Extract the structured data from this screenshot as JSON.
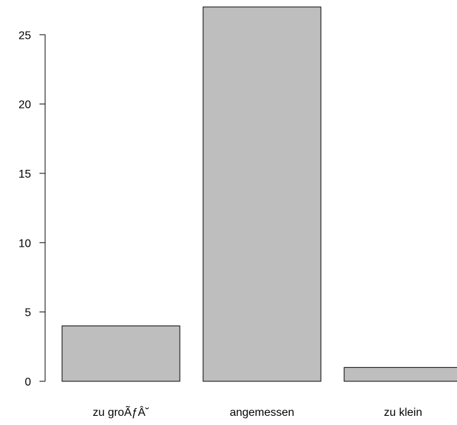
{
  "chart_data": {
    "type": "bar",
    "categories": [
      "zu groÃƒÂ˘",
      "angemessen",
      "zu klein"
    ],
    "values": [
      4,
      27,
      1
    ],
    "yticks": [
      "0",
      "5",
      "10",
      "15",
      "20",
      "25"
    ],
    "ylim": [
      0,
      27
    ],
    "title": "",
    "xlabel": "",
    "ylabel": "",
    "grid": false,
    "bar_color": "#bebebe",
    "edge_color": "#000000"
  }
}
